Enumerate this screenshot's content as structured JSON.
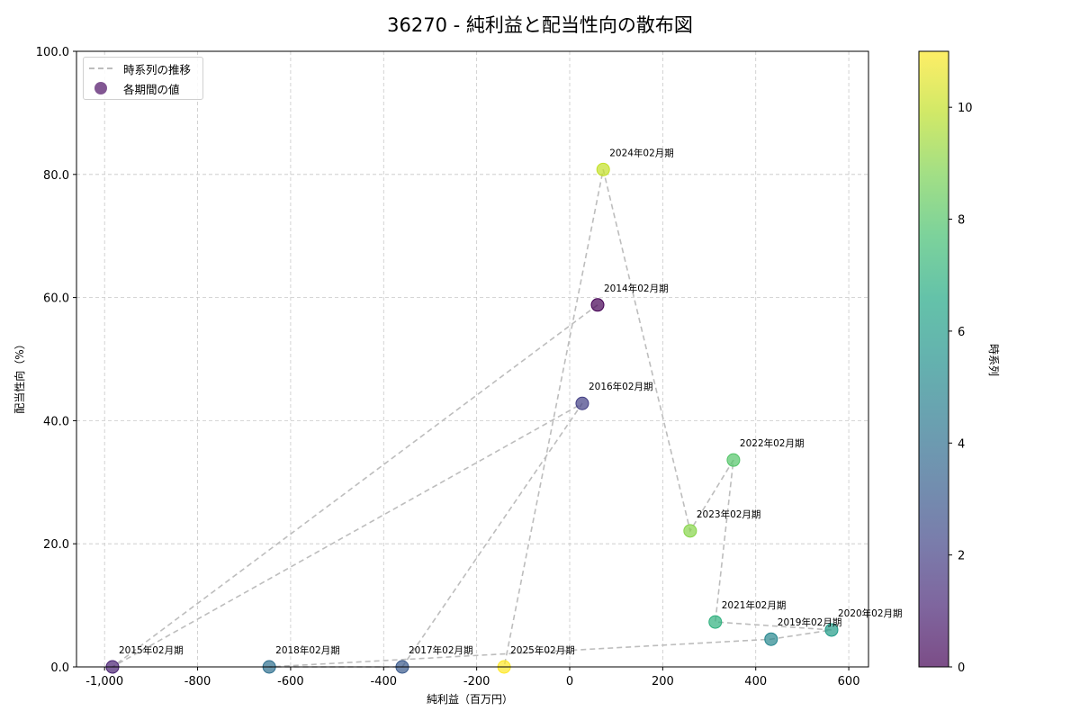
{
  "title": "36270 - 純利益と配当性向の散布図",
  "legend": {
    "line_label": "時系列の推移",
    "marker_label": "各期間の値"
  },
  "colorbar": {
    "label": "時系列",
    "ticks": [
      "0",
      "2",
      "4",
      "6",
      "8",
      "10"
    ]
  },
  "chart_data": {
    "type": "scatter",
    "title": "36270 - 純利益と配当性向の散布図",
    "xlabel": "純利益（百万円）",
    "ylabel": "配当性向（%）",
    "xlim": [
      -1050,
      640
    ],
    "ylim": [
      0,
      100
    ],
    "x_ticks": [
      "-1,000",
      "-800",
      "-600",
      "-400",
      "-200",
      "0",
      "200",
      "400",
      "600"
    ],
    "y_ticks": [
      "0.0",
      "20.0",
      "40.0",
      "60.0",
      "80.0",
      "100.0"
    ],
    "grid": true,
    "legend_position": "upper left",
    "colormap": "viridis",
    "colorbar_label": "時系列",
    "colorbar_range": [
      0,
      11
    ],
    "points": [
      {
        "label": "2014年02月期",
        "x": 60,
        "y": 58.8,
        "t": 0
      },
      {
        "label": "2015年02月期",
        "x": -983,
        "y": 0.0,
        "t": 1
      },
      {
        "label": "2016年02月期",
        "x": 27,
        "y": 42.8,
        "t": 2
      },
      {
        "label": "2017年02月期",
        "x": -360,
        "y": 0.0,
        "t": 3
      },
      {
        "label": "2018年02月期",
        "x": -646,
        "y": 0.0,
        "t": 4
      },
      {
        "label": "2019年02月期",
        "x": 433,
        "y": 4.5,
        "t": 5
      },
      {
        "label": "2020年02月期",
        "x": 563,
        "y": 6.0,
        "t": 6
      },
      {
        "label": "2021年02月期",
        "x": 313,
        "y": 7.3,
        "t": 7
      },
      {
        "label": "2022年02月期",
        "x": 352,
        "y": 33.6,
        "t": 8
      },
      {
        "label": "2023年02月期",
        "x": 259,
        "y": 22.1,
        "t": 9
      },
      {
        "label": "2024年02月期",
        "x": 72,
        "y": 80.8,
        "t": 10
      },
      {
        "label": "2025年02月期",
        "x": -141,
        "y": 0.0,
        "t": 11
      }
    ]
  }
}
